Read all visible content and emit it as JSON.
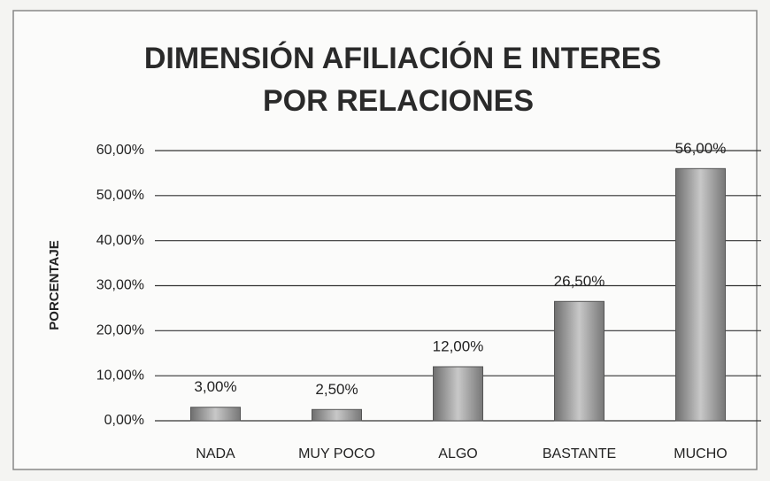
{
  "chart_data": {
    "type": "bar",
    "title": [
      "DIMENSIÓN AFILIACIÓN E INTERES",
      "POR RELACIONES"
    ],
    "y_label": "PORCENTAJE",
    "categories": [
      "NADA",
      "MUY POCO",
      "ALGO",
      "BASTANTE",
      "MUCHO"
    ],
    "values": [
      3,
      2.5,
      12,
      26.5,
      56
    ],
    "value_labels": [
      "3,00%",
      "2,50%",
      "12,00%",
      "26,50%",
      "56,00%"
    ],
    "color": "#9a9a9a",
    "ylim": [
      0,
      60
    ],
    "yticks": [
      {
        "value": 0,
        "label": "0,00%"
      },
      {
        "value": 10,
        "label": "10,00%"
      },
      {
        "value": 20,
        "label": "20,00%"
      },
      {
        "value": 30,
        "label": "30,00%"
      },
      {
        "value": 40,
        "label": "40,00%"
      },
      {
        "value": 50,
        "label": "50,00%"
      },
      {
        "value": 60,
        "label": "60,00%"
      }
    ],
    "grid": true
  }
}
